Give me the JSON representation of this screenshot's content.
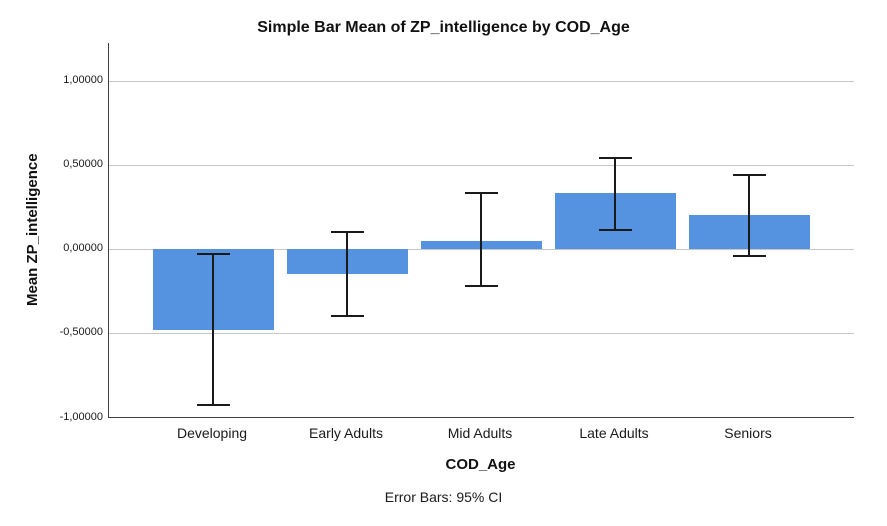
{
  "chart_data": {
    "type": "bar",
    "title": "Simple Bar Mean of ZP_intelligence by COD_Age",
    "xlabel": "COD_Age",
    "ylabel": "Mean ZP_intelligence",
    "footnote": "Error Bars: 95% CI",
    "categories": [
      "Developing",
      "Early Adults",
      "Mid Adults",
      "Late Adults",
      "Seniors"
    ],
    "values": [
      -0.48,
      -0.15,
      0.05,
      0.33,
      0.2
    ],
    "error_bars": {
      "kind": "95% CI",
      "low": [
        -0.93,
        -0.4,
        -0.22,
        0.11,
        -0.04
      ],
      "high": [
        -0.03,
        0.1,
        0.33,
        0.54,
        0.44
      ]
    },
    "ylim": [
      -1.0,
      1.225
    ],
    "yticks": [
      1.0,
      0.5,
      0.0,
      -0.5,
      -1.0
    ],
    "ytick_labels": [
      "1,00000",
      "0,50000",
      "0,00000",
      "-0,50000",
      "-1,00000"
    ],
    "grid": "horizontal",
    "legend": "none",
    "bar_color": "#5592E0",
    "error_bar_color": "#1a1a1a",
    "axis_color": "#404040",
    "grid_color": "#c7c7c7"
  }
}
